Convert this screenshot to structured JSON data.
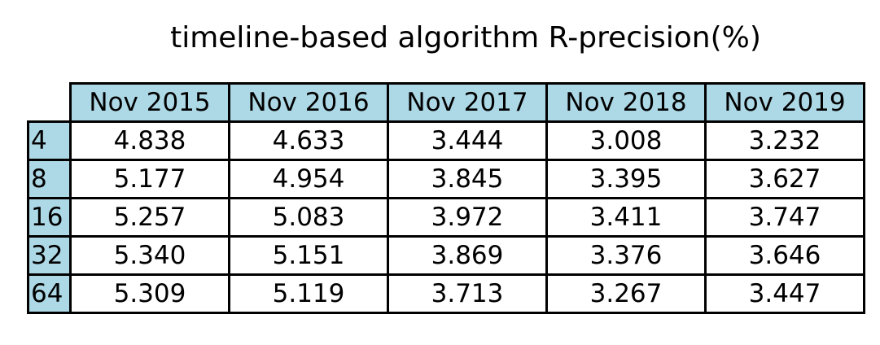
{
  "chart_data": {
    "type": "table",
    "title": "timeline-based algorithm R-precision(%)",
    "header_color": "#add8e6",
    "border_color": "#000000",
    "columns": [
      "Nov 2015",
      "Nov 2016",
      "Nov 2017",
      "Nov 2018",
      "Nov 2019"
    ],
    "rows": [
      {
        "label": "4",
        "values": [
          "4.838",
          "4.633",
          "3.444",
          "3.008",
          "3.232"
        ]
      },
      {
        "label": "8",
        "values": [
          "5.177",
          "4.954",
          "3.845",
          "3.395",
          "3.627"
        ]
      },
      {
        "label": "16",
        "values": [
          "5.257",
          "5.083",
          "3.972",
          "3.411",
          "3.747"
        ]
      },
      {
        "label": "32",
        "values": [
          "5.340",
          "5.151",
          "3.869",
          "3.376",
          "3.646"
        ]
      },
      {
        "label": "64",
        "values": [
          "5.309",
          "5.119",
          "3.713",
          "3.267",
          "3.447"
        ]
      }
    ]
  }
}
